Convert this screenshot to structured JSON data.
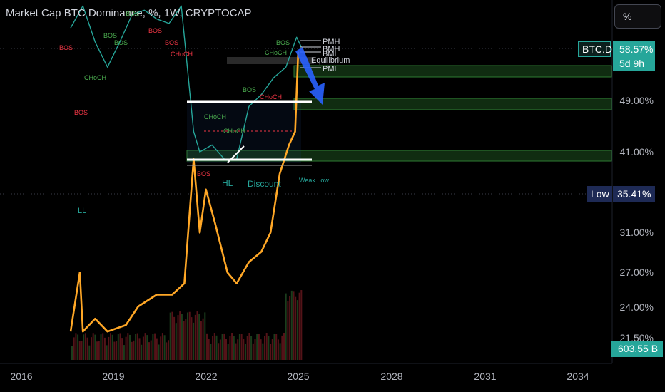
{
  "header": {
    "title": "Market Cap BTC Dominance, %, 1W, CRYPTOCAP",
    "scale_button": "%"
  },
  "chart_data": {
    "type": "line",
    "title": "Market Cap BTC Dominance, %, 1W, CRYPTOCAP",
    "y_ticks": [
      "49.00%",
      "41.00%",
      "31.00%",
      "27.00%",
      "24.00%",
      "21.50%"
    ],
    "x_ticks": [
      "2016",
      "2019",
      "2022",
      "2025",
      "2028",
      "2031",
      "2034"
    ],
    "yscale": "log",
    "series": [
      {
        "name": "BTC.D",
        "color": "#26a69a",
        "x": [
          2017.6,
          2018.0,
          2018.4,
          2018.8,
          2019.2,
          2019.6,
          2020.0,
          2020.4,
          2020.8,
          2021.2,
          2021.6,
          2021.8,
          2022.2,
          2022.6,
          2023.0,
          2023.4,
          2023.8,
          2024.2,
          2024.6,
          2024.95,
          2025.1
        ],
        "values": [
          63,
          68,
          60,
          55,
          60,
          66,
          67,
          65,
          64,
          68,
          44,
          41,
          42,
          40,
          40,
          48,
          50,
          53,
          55,
          61,
          59
        ]
      },
      {
        "name": "",
        "color": "#ffa726",
        "x": [
          2017.6,
          2017.9,
          2018.0,
          2018.4,
          2018.8,
          2019.4,
          2019.8,
          2020.4,
          2020.9,
          2021.3,
          2021.6,
          2021.8,
          2022.0,
          2022.3,
          2022.7,
          2023.0,
          2023.4,
          2023.8,
          2024.1,
          2024.4,
          2024.7,
          2024.9,
          2025.0
        ],
        "values": [
          22,
          27,
          22,
          23,
          22,
          22.5,
          24,
          25,
          25,
          26,
          40,
          31,
          36,
          32,
          27,
          26,
          28,
          29,
          31,
          38,
          42,
          44,
          58
        ]
      }
    ],
    "annotations": [
      "LL",
      "BOS",
      "CHoCH",
      "HL",
      "Discount",
      "Weak Low",
      "PMH",
      "BMH",
      "BML",
      "PML",
      "Equilibrium"
    ],
    "zones": [
      "49.00%",
      "41.00%",
      "58.57%"
    ],
    "grid": false,
    "legend": "none"
  },
  "badges": {
    "symbol": "BTC.D",
    "price": "58.57%",
    "countdown": "5d 9h",
    "low_label": "Low",
    "low_value": "35.41%",
    "volume": "603.55 B"
  },
  "labels": {
    "ll": "LL",
    "hl": "HL",
    "discount": "Discount",
    "weak_low": "Weak Low",
    "pmh": "PMH",
    "bmh": "BMH",
    "bml": "BML",
    "pml": "PML",
    "equilibrium": "Equilibrium",
    "bos": "BOS",
    "choch": "CHoCH"
  },
  "colors": {
    "background": "#000000",
    "orange": "#ffa726",
    "teal": "#26a69a",
    "zone": "#2e7d32",
    "bear": "#f23645",
    "bull": "#4caf50",
    "arrow": "#2962ff"
  }
}
